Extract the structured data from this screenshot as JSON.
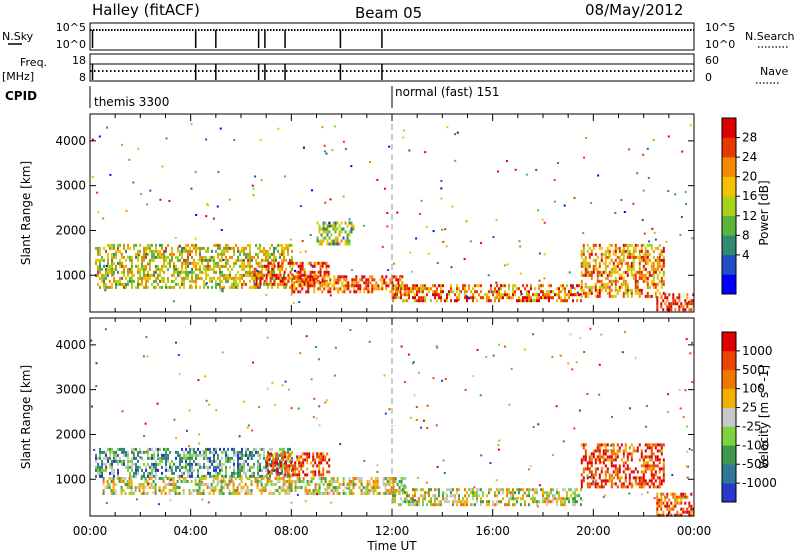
{
  "header": {
    "station": "Halley (fitACF)",
    "beam": "Beam 05",
    "date": "08/May/2012"
  },
  "chart_data": [
    {
      "type": "line",
      "name": "nsky-nsearch-strip",
      "left_label": "N.Sky",
      "left_ticks": [
        "10^5",
        "10^0"
      ],
      "right_label": "N.Search",
      "right_ticks": [
        "10^5",
        "10^0"
      ],
      "drops_ut_hours": [
        0.1,
        4.2,
        5.0,
        6.7,
        6.95,
        7.75,
        9.95,
        11.6
      ]
    },
    {
      "type": "line",
      "name": "freq-nave-strip",
      "left_label": "Freq.",
      "left_unit": "[MHz]",
      "left_ticks": [
        "18",
        "8"
      ],
      "right_label": "Nave",
      "right_ticks": [
        "60",
        "0"
      ],
      "drops_ut_hours": [
        0.1,
        4.2,
        5.0,
        6.7,
        6.95,
        7.75,
        9.95,
        11.6
      ]
    },
    {
      "type": "table",
      "name": "cpid",
      "label": "CPID",
      "segments": [
        {
          "start_ut_hours": 0,
          "text": "themis 3300"
        },
        {
          "start_ut_hours": 12,
          "text": "normal (fast) 151"
        }
      ]
    },
    {
      "type": "heatmap",
      "name": "power",
      "ylabel": "Slant Range [km]",
      "yticks": [
        "4000",
        "3000",
        "2000",
        "1000"
      ],
      "ytick_values": [
        4000,
        3000,
        2000,
        1000
      ],
      "ylim": [
        180,
        4600
      ],
      "xlim": [
        0,
        24
      ],
      "colorbar_label": "Power [dB]",
      "colorbar_ticks": [
        "28",
        "24",
        "20",
        "16",
        "12",
        "8",
        "4"
      ],
      "colorbar_colors": [
        "#0000ff",
        "#1f4ec8",
        "#2f8a72",
        "#5ab43c",
        "#a8d218",
        "#f2c200",
        "#f58a00",
        "#e83800",
        "#dd0000"
      ],
      "echo_bands": [
        {
          "x0": 0.2,
          "x1": 8.0,
          "range_low": 700,
          "range_high": 1700,
          "level": 0.55
        },
        {
          "x0": 6.5,
          "x1": 9.5,
          "range_low": 800,
          "range_high": 1300,
          "level": 0.85
        },
        {
          "x0": 8.0,
          "x1": 12.5,
          "range_low": 650,
          "range_high": 1000,
          "level": 0.8
        },
        {
          "x0": 9.0,
          "x1": 10.5,
          "range_low": 1700,
          "range_high": 2200,
          "level": 0.45
        },
        {
          "x0": 12.0,
          "x1": 19.5,
          "range_low": 450,
          "range_high": 800,
          "level": 0.75
        },
        {
          "x0": 19.5,
          "x1": 22.8,
          "range_low": 500,
          "range_high": 1700,
          "level": 0.7
        },
        {
          "x0": 22.5,
          "x1": 24.0,
          "range_low": 200,
          "range_high": 600,
          "level": 0.9
        }
      ]
    },
    {
      "type": "heatmap",
      "name": "velocity",
      "ylabel": "Slant Range [km]",
      "yticks": [
        "4000",
        "3000",
        "2000",
        "1000"
      ],
      "ytick_values": [
        4000,
        3000,
        2000,
        1000
      ],
      "ylim": [
        180,
        4600
      ],
      "xlim": [
        0,
        24
      ],
      "colorbar_label": "Velocity [m s^-1]",
      "colorbar_ticks": [
        "1000",
        "500",
        "100",
        "25",
        "-25",
        "-100",
        "-500",
        "-1000"
      ],
      "colorbar_colors": [
        "#2a3ac8",
        "#2e7a96",
        "#3c9a4a",
        "#7ed23a",
        "#c8c8c8",
        "#f2b000",
        "#f07800",
        "#ec4400",
        "#e00000"
      ],
      "echo_bands": [
        {
          "x0": 0.2,
          "x1": 8.0,
          "range_low": 1050,
          "range_high": 1700,
          "level": 0.3
        },
        {
          "x0": 0.5,
          "x1": 12.5,
          "range_low": 700,
          "range_high": 1050,
          "level": 0.5
        },
        {
          "x0": 7.0,
          "x1": 9.5,
          "range_low": 1100,
          "range_high": 1600,
          "level": 0.8
        },
        {
          "x0": 12.0,
          "x1": 19.5,
          "range_low": 450,
          "range_high": 800,
          "level": 0.5
        },
        {
          "x0": 19.5,
          "x1": 22.8,
          "range_low": 800,
          "range_high": 1800,
          "level": 0.85
        },
        {
          "x0": 22.5,
          "x1": 24.0,
          "range_low": 200,
          "range_high": 700,
          "level": 0.8
        }
      ]
    }
  ],
  "x_axis": {
    "label": "Time UT",
    "ticks": [
      "00:00",
      "04:00",
      "08:00",
      "12:00",
      "16:00",
      "20:00",
      "00:00"
    ],
    "tick_hours": [
      0,
      4,
      8,
      12,
      16,
      20,
      24
    ]
  }
}
